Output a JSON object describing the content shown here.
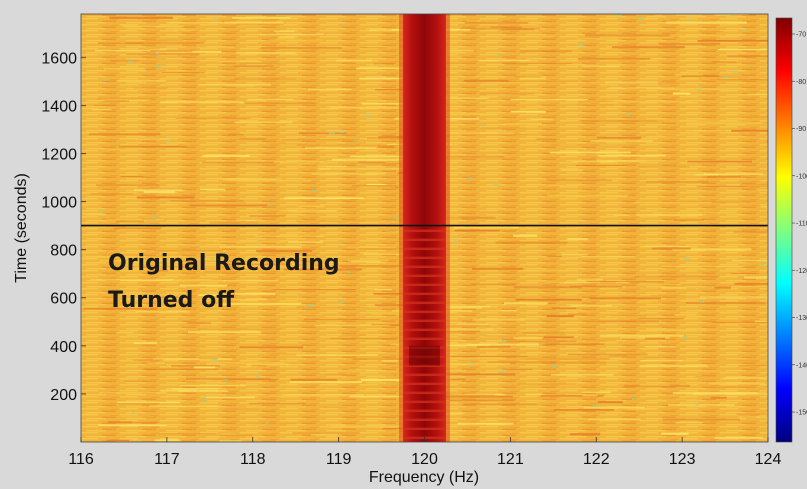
{
  "chart_data": {
    "type": "heatmap",
    "xlabel": "Frequency (Hz)",
    "ylabel": "Time (seconds)",
    "xlim": [
      116,
      124
    ],
    "ylim": [
      0,
      1780
    ],
    "x_ticks": [
      "116",
      "117",
      "118",
      "119",
      "120",
      "121",
      "122",
      "123",
      "124"
    ],
    "y_ticks": [
      "200",
      "400",
      "600",
      "800",
      "1000",
      "1200",
      "1400",
      "1600"
    ],
    "peak_frequency_hz": 120,
    "peak_band_hz": [
      119.75,
      120.25
    ],
    "change_time_s": 900,
    "annotations": [
      "Original Recording",
      "Turned off"
    ],
    "colorbar": {
      "ticks": [
        "-70",
        "-80",
        "-90",
        "-100",
        "-110",
        "-120",
        "-130",
        "-140",
        "-150"
      ],
      "colormap": "jet"
    },
    "colors": {
      "background": "#d9d9d9",
      "divider_line": "#111111"
    }
  }
}
